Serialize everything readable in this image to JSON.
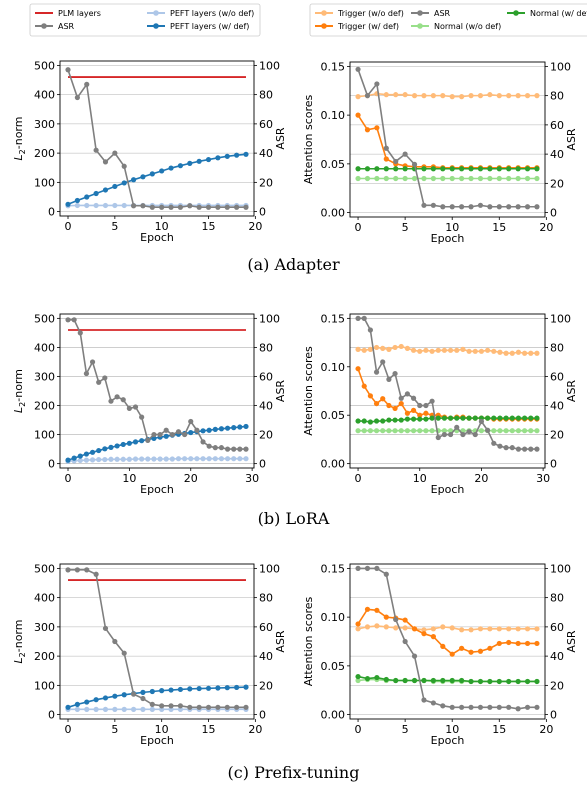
{
  "legends": {
    "left": [
      {
        "label": "PLM layers",
        "color": "#d62728",
        "marker": false
      },
      {
        "label": "ASR",
        "color": "#7f7f7f",
        "marker": true
      },
      {
        "label": "PEFT layers (w/o def)",
        "color": "#aec7e8",
        "marker": true
      },
      {
        "label": "PEFT layers (w/ def)",
        "color": "#1f77b4",
        "marker": true
      }
    ],
    "right": [
      {
        "label": "Trigger (w/o def)",
        "color": "#ffbb78",
        "marker": true
      },
      {
        "label": "Trigger (w/ def)",
        "color": "#ff7f0e",
        "marker": true
      },
      {
        "label": "ASR",
        "color": "#7f7f7f",
        "marker": true
      },
      {
        "label": "Normal (w/o def)",
        "color": "#98df8a",
        "marker": true
      },
      {
        "label": "Normal (w/ def)",
        "color": "#2ca02c",
        "marker": true
      }
    ]
  },
  "captions": {
    "adapter": "(a) Adapter",
    "lora": "(b) LoRA",
    "prefix": "(c) Prefix-tuning"
  },
  "chart_data": [
    {
      "type": "line",
      "xlabel": "Epoch",
      "ylabel": "L2-norm",
      "y2label": "ASR",
      "xlim": [
        0,
        19
      ],
      "xticks": [
        0,
        5,
        10,
        15,
        20
      ],
      "ylim": [
        0,
        500
      ],
      "yticks": [
        0,
        100,
        200,
        300,
        400,
        500
      ],
      "y2lim": [
        0,
        100
      ],
      "y2ticks": [
        0,
        20,
        40,
        60,
        80,
        100
      ],
      "series": [
        {
          "name": "PLM layers",
          "axis": "left",
          "color": "#d62728",
          "marker": false,
          "constant": 460
        },
        {
          "name": "PEFT layers (w/o def)",
          "axis": "left",
          "color": "#aec7e8",
          "marker": true,
          "values": [
            20,
            21,
            21,
            21,
            21,
            21,
            21,
            21,
            21,
            21,
            21,
            21,
            21,
            21,
            21,
            21,
            21,
            21,
            21,
            21
          ]
        },
        {
          "name": "PEFT layers (w/ def)",
          "axis": "left",
          "color": "#1f77b4",
          "marker": true,
          "values": [
            25,
            38,
            50,
            62,
            74,
            86,
            98,
            109,
            119,
            129,
            139,
            149,
            157,
            165,
            172,
            178,
            184,
            189,
            193,
            196
          ]
        },
        {
          "name": "ASR",
          "axis": "right",
          "color": "#7f7f7f",
          "marker": true,
          "values": [
            97,
            78,
            87,
            42,
            34,
            40,
            31,
            4,
            4,
            3,
            3,
            3,
            3,
            4,
            3,
            3,
            3,
            3,
            3,
            3
          ]
        }
      ]
    },
    {
      "type": "line",
      "xlabel": "Epoch",
      "ylabel": "Attention scores",
      "y2label": "ASR",
      "xlim": [
        0,
        19
      ],
      "xticks": [
        0,
        5,
        10,
        15,
        20
      ],
      "ylim": [
        0,
        0.15
      ],
      "yticks": [
        "0.00",
        "0.05",
        "0.10",
        "0.15"
      ],
      "y2lim": [
        0,
        100
      ],
      "y2ticks": [
        0,
        20,
        40,
        60,
        80,
        100
      ],
      "series": [
        {
          "name": "Trigger (w/o def)",
          "axis": "left",
          "color": "#ffbb78",
          "marker": true,
          "values": [
            0.119,
            0.12,
            0.122,
            0.121,
            0.121,
            0.121,
            0.12,
            0.12,
            0.12,
            0.12,
            0.119,
            0.119,
            0.12,
            0.12,
            0.121,
            0.12,
            0.12,
            0.12,
            0.12,
            0.12
          ]
        },
        {
          "name": "Trigger (w/ def)",
          "axis": "left",
          "color": "#ff7f0e",
          "marker": true,
          "values": [
            0.1,
            0.085,
            0.087,
            0.055,
            0.05,
            0.048,
            0.047,
            0.047,
            0.047,
            0.046,
            0.046,
            0.046,
            0.046,
            0.046,
            0.046,
            0.046,
            0.046,
            0.046,
            0.046,
            0.046
          ]
        },
        {
          "name": "Normal (w/o def)",
          "axis": "left",
          "color": "#98df8a",
          "marker": true,
          "values": [
            0.035,
            0.035,
            0.035,
            0.035,
            0.035,
            0.035,
            0.035,
            0.035,
            0.035,
            0.035,
            0.035,
            0.035,
            0.035,
            0.035,
            0.035,
            0.035,
            0.035,
            0.035,
            0.035,
            0.035
          ]
        },
        {
          "name": "Normal (w/ def)",
          "axis": "left",
          "color": "#2ca02c",
          "marker": true,
          "values": [
            0.045,
            0.045,
            0.045,
            0.045,
            0.045,
            0.045,
            0.045,
            0.045,
            0.045,
            0.045,
            0.045,
            0.045,
            0.045,
            0.045,
            0.045,
            0.045,
            0.045,
            0.045,
            0.045,
            0.045
          ]
        },
        {
          "name": "ASR",
          "axis": "right",
          "color": "#7f7f7f",
          "marker": true,
          "values": [
            98,
            80,
            88,
            44,
            35,
            40,
            33,
            5,
            5,
            4,
            4,
            4,
            4,
            5,
            4,
            4,
            4,
            4,
            4,
            4
          ]
        }
      ]
    },
    {
      "type": "line",
      "xlabel": "Epoch",
      "ylabel": "L2-norm",
      "y2label": "ASR",
      "xlim": [
        0,
        29
      ],
      "xticks": [
        0,
        10,
        20,
        30
      ],
      "ylim": [
        0,
        500
      ],
      "yticks": [
        0,
        100,
        200,
        300,
        400,
        500
      ],
      "y2lim": [
        0,
        100
      ],
      "y2ticks": [
        0,
        20,
        40,
        60,
        80,
        100
      ],
      "series": [
        {
          "name": "PLM layers",
          "axis": "left",
          "color": "#d62728",
          "marker": false,
          "constant": 460
        },
        {
          "name": "PEFT layers (w/o def)",
          "axis": "left",
          "color": "#aec7e8",
          "marker": true,
          "values": [
            8,
            10,
            11,
            12,
            13,
            14,
            14,
            15,
            15,
            15,
            15,
            16,
            16,
            16,
            16,
            16,
            16,
            16,
            17,
            17,
            17,
            17,
            17,
            17,
            17,
            17,
            17,
            17,
            17,
            17
          ]
        },
        {
          "name": "PEFT layers (w/ def)",
          "axis": "left",
          "color": "#1f77b4",
          "marker": true,
          "values": [
            12,
            19,
            26,
            33,
            39,
            45,
            51,
            56,
            61,
            66,
            70,
            75,
            79,
            83,
            87,
            91,
            94,
            98,
            101,
            104,
            107,
            110,
            113,
            115,
            118,
            120,
            122,
            124,
            126,
            128
          ]
        },
        {
          "name": "ASR",
          "axis": "right",
          "color": "#7f7f7f",
          "marker": true,
          "values": [
            99,
            99,
            90,
            62,
            70,
            56,
            59,
            43,
            46,
            44,
            38,
            39,
            32,
            16,
            20,
            20,
            23,
            20,
            22,
            20,
            29,
            23,
            15,
            12,
            11,
            11,
            10,
            10,
            10,
            10
          ]
        }
      ]
    },
    {
      "type": "line",
      "xlabel": "Epoch",
      "ylabel": "Attention scores",
      "y2label": "ASR",
      "xlim": [
        0,
        29
      ],
      "xticks": [
        0,
        10,
        20,
        30
      ],
      "ylim": [
        0,
        0.15
      ],
      "yticks": [
        "0.00",
        "0.05",
        "0.10",
        "0.15"
      ],
      "y2lim": [
        0,
        100
      ],
      "y2ticks": [
        0,
        20,
        40,
        60,
        80,
        100
      ],
      "series": [
        {
          "name": "Trigger (w/o def)",
          "axis": "left",
          "color": "#ffbb78",
          "marker": true,
          "values": [
            0.118,
            0.117,
            0.118,
            0.12,
            0.119,
            0.118,
            0.12,
            0.121,
            0.119,
            0.117,
            0.116,
            0.117,
            0.116,
            0.117,
            0.117,
            0.117,
            0.117,
            0.118,
            0.116,
            0.116,
            0.116,
            0.117,
            0.116,
            0.115,
            0.114,
            0.114,
            0.115,
            0.114,
            0.114,
            0.114
          ]
        },
        {
          "name": "Trigger (w/ def)",
          "axis": "left",
          "color": "#ff7f0e",
          "marker": true,
          "values": [
            0.098,
            0.08,
            0.07,
            0.062,
            0.067,
            0.06,
            0.057,
            0.062,
            0.052,
            0.055,
            0.05,
            0.052,
            0.05,
            0.05,
            0.048,
            0.047,
            0.048,
            0.048,
            0.047,
            0.047,
            0.047,
            0.047,
            0.046,
            0.046,
            0.046,
            0.046,
            0.046,
            0.046,
            0.046,
            0.046
          ]
        },
        {
          "name": "Normal (w/o def)",
          "axis": "left",
          "color": "#98df8a",
          "marker": true,
          "values": [
            0.034,
            0.034,
            0.034,
            0.034,
            0.034,
            0.034,
            0.034,
            0.034,
            0.034,
            0.034,
            0.034,
            0.034,
            0.034,
            0.034,
            0.034,
            0.034,
            0.034,
            0.034,
            0.034,
            0.034,
            0.034,
            0.034,
            0.034,
            0.034,
            0.034,
            0.034,
            0.034,
            0.034,
            0.034,
            0.034
          ]
        },
        {
          "name": "Normal (w/ def)",
          "axis": "left",
          "color": "#2ca02c",
          "marker": true,
          "values": [
            0.044,
            0.044,
            0.043,
            0.044,
            0.044,
            0.045,
            0.045,
            0.045,
            0.046,
            0.046,
            0.046,
            0.046,
            0.047,
            0.047,
            0.047,
            0.047,
            0.047,
            0.047,
            0.047,
            0.047,
            0.047,
            0.047,
            0.047,
            0.047,
            0.047,
            0.047,
            0.047,
            0.047,
            0.047,
            0.047
          ]
        },
        {
          "name": "ASR",
          "axis": "right",
          "color": "#7f7f7f",
          "marker": true,
          "values": [
            100,
            100,
            92,
            63,
            70,
            58,
            62,
            45,
            48,
            45,
            40,
            40,
            43,
            18,
            20,
            20,
            25,
            20,
            22,
            20,
            29,
            23,
            14,
            12,
            11,
            11,
            10,
            10,
            10,
            10
          ]
        }
      ]
    },
    {
      "type": "line",
      "xlabel": "Epoch",
      "ylabel": "L2-norm",
      "y2label": "ASR",
      "xlim": [
        0,
        19
      ],
      "xticks": [
        0,
        5,
        10,
        15,
        20
      ],
      "ylim": [
        0,
        500
      ],
      "yticks": [
        0,
        100,
        200,
        300,
        400,
        500
      ],
      "y2lim": [
        0,
        100
      ],
      "y2ticks": [
        0,
        20,
        40,
        60,
        80,
        100
      ],
      "series": [
        {
          "name": "PLM layers",
          "axis": "left",
          "color": "#d62728",
          "marker": false,
          "constant": 460
        },
        {
          "name": "PEFT layers (w/o def)",
          "axis": "left",
          "color": "#aec7e8",
          "marker": true,
          "values": [
            18,
            18,
            18,
            18,
            18,
            18,
            18,
            18,
            18,
            18,
            18,
            18,
            18,
            18,
            18,
            18,
            18,
            18,
            18,
            18
          ]
        },
        {
          "name": "PEFT layers (w/ def)",
          "axis": "left",
          "color": "#1f77b4",
          "marker": true,
          "values": [
            25,
            35,
            43,
            51,
            57,
            63,
            68,
            72,
            76,
            79,
            82,
            84,
            86,
            88,
            89,
            90,
            91,
            92,
            93,
            94
          ]
        },
        {
          "name": "ASR",
          "axis": "right",
          "color": "#7f7f7f",
          "marker": true,
          "values": [
            99,
            99,
            99,
            96,
            59,
            50,
            42,
            14,
            11,
            7,
            6,
            6,
            6,
            5,
            5,
            5,
            5,
            5,
            5,
            5
          ]
        }
      ]
    },
    {
      "type": "line",
      "xlabel": "Epoch",
      "ylabel": "Attention scores",
      "y2label": "ASR",
      "xlim": [
        0,
        19
      ],
      "xticks": [
        0,
        5,
        10,
        15,
        20
      ],
      "ylim": [
        0,
        0.15
      ],
      "yticks": [
        "0.00",
        "0.05",
        "0.10",
        "0.15"
      ],
      "y2lim": [
        0,
        100
      ],
      "y2ticks": [
        0,
        20,
        40,
        60,
        80,
        100
      ],
      "series": [
        {
          "name": "Trigger (w/o def)",
          "axis": "left",
          "color": "#ffbb78",
          "marker": true,
          "values": [
            0.088,
            0.09,
            0.091,
            0.09,
            0.089,
            0.089,
            0.088,
            0.087,
            0.088,
            0.09,
            0.089,
            0.087,
            0.087,
            0.088,
            0.088,
            0.088,
            0.088,
            0.088,
            0.088,
            0.088
          ]
        },
        {
          "name": "Trigger (w/ def)",
          "axis": "left",
          "color": "#ff7f0e",
          "marker": true,
          "values": [
            0.093,
            0.108,
            0.107,
            0.1,
            0.099,
            0.097,
            0.088,
            0.083,
            0.08,
            0.07,
            0.062,
            0.068,
            0.064,
            0.065,
            0.068,
            0.073,
            0.074,
            0.073,
            0.073,
            0.073
          ]
        },
        {
          "name": "Normal (w/o def)",
          "axis": "left",
          "color": "#98df8a",
          "marker": true,
          "values": [
            0.035,
            0.036,
            0.036,
            0.035,
            0.035,
            0.035,
            0.035,
            0.035,
            0.034,
            0.034,
            0.034,
            0.034,
            0.034,
            0.034,
            0.034,
            0.034,
            0.034,
            0.034,
            0.034,
            0.034
          ]
        },
        {
          "name": "Normal (w/ def)",
          "axis": "left",
          "color": "#2ca02c",
          "marker": true,
          "values": [
            0.039,
            0.037,
            0.038,
            0.036,
            0.035,
            0.035,
            0.035,
            0.035,
            0.035,
            0.035,
            0.035,
            0.035,
            0.034,
            0.034,
            0.034,
            0.034,
            0.034,
            0.034,
            0.034,
            0.034
          ]
        },
        {
          "name": "ASR",
          "axis": "right",
          "color": "#7f7f7f",
          "marker": true,
          "values": [
            100,
            100,
            100,
            96,
            65,
            50,
            40,
            10,
            8,
            6,
            5,
            5,
            5,
            5,
            5,
            5,
            5,
            4,
            5,
            5
          ]
        }
      ]
    }
  ]
}
